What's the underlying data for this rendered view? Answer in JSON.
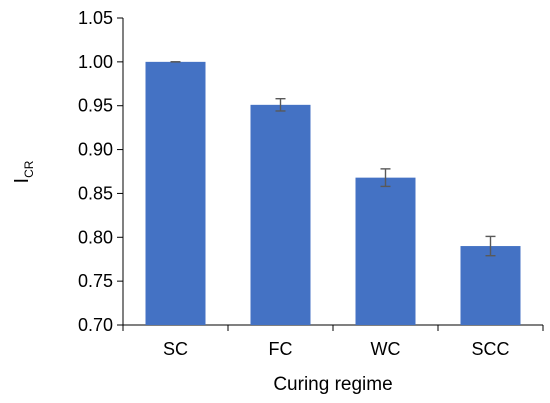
{
  "chart_data": {
    "type": "bar",
    "categories": [
      "SC",
      "FC",
      "WC",
      "SCC"
    ],
    "values": [
      1.0,
      0.951,
      0.868,
      0.79
    ],
    "errors": [
      0.0,
      0.007,
      0.01,
      0.011
    ],
    "xlabel": "Curing regime",
    "ylabel_main": "I",
    "ylabel_sub": "CR",
    "ylim": [
      0.7,
      1.05
    ],
    "yticks": [
      0.7,
      0.75,
      0.8,
      0.85,
      0.9,
      0.95,
      1.0,
      1.05
    ],
    "ytick_labels": [
      "0.70",
      "0.75",
      "0.80",
      "0.85",
      "0.90",
      "0.95",
      "1.00",
      "1.05"
    ],
    "grid": false,
    "colors": {
      "bar": "#4472C4",
      "error_bar": "#595959",
      "axis": "#000000"
    }
  }
}
